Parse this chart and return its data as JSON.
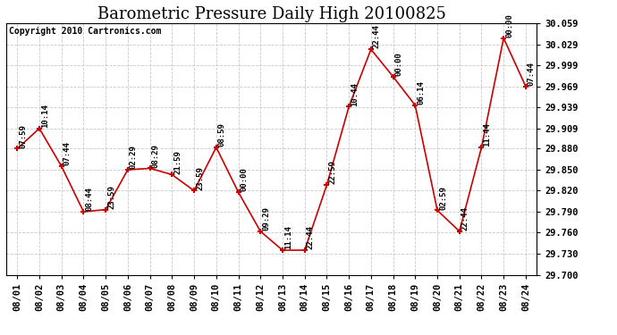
{
  "title": "Barometric Pressure Daily High 20100825",
  "copyright": "Copyright 2010 Cartronics.com",
  "background_color": "#ffffff",
  "grid_color": "#c8c8c8",
  "line_color": "#cc0000",
  "marker_color": "#cc0000",
  "text_color": "#000000",
  "dates": [
    "08/01",
    "08/02",
    "08/03",
    "08/04",
    "08/05",
    "08/06",
    "08/07",
    "08/08",
    "08/09",
    "08/10",
    "08/11",
    "08/12",
    "08/13",
    "08/14",
    "08/15",
    "08/16",
    "08/17",
    "08/18",
    "08/19",
    "08/20",
    "08/21",
    "08/22",
    "08/23",
    "08/24"
  ],
  "values": [
    29.88,
    29.909,
    29.855,
    29.79,
    29.793,
    29.85,
    29.852,
    29.843,
    29.82,
    29.882,
    29.818,
    29.762,
    29.735,
    29.735,
    29.828,
    29.94,
    30.022,
    29.983,
    29.942,
    29.792,
    29.762,
    29.882,
    30.038,
    29.969
  ],
  "time_labels": [
    "07:59",
    "10:14",
    "07:44",
    "08:44",
    "23:59",
    "02:29",
    "08:29",
    "21:59",
    "23:59",
    "08:59",
    "00:00",
    "09:29",
    "11:14",
    "22:44",
    "22:59",
    "10:44",
    "22:44",
    "00:00",
    "06:14",
    "02:59",
    "22:44",
    "11:44",
    "00:00",
    "07:44"
  ],
  "ylim_min": 29.7,
  "ylim_max": 30.059,
  "ytick_vals": [
    29.7,
    29.73,
    29.76,
    29.79,
    29.82,
    29.85,
    29.88,
    29.909,
    29.939,
    29.969,
    29.999,
    30.029,
    30.059
  ],
  "ytick_labels": [
    "29.700",
    "29.730",
    "29.760",
    "29.790",
    "29.820",
    "29.850",
    "29.880",
    "29.909",
    "29.939",
    "29.969",
    "29.999",
    "30.029",
    "30.059"
  ],
  "title_fontsize": 13,
  "copyright_fontsize": 7,
  "label_fontsize": 6.5,
  "tick_fontsize": 7.5
}
